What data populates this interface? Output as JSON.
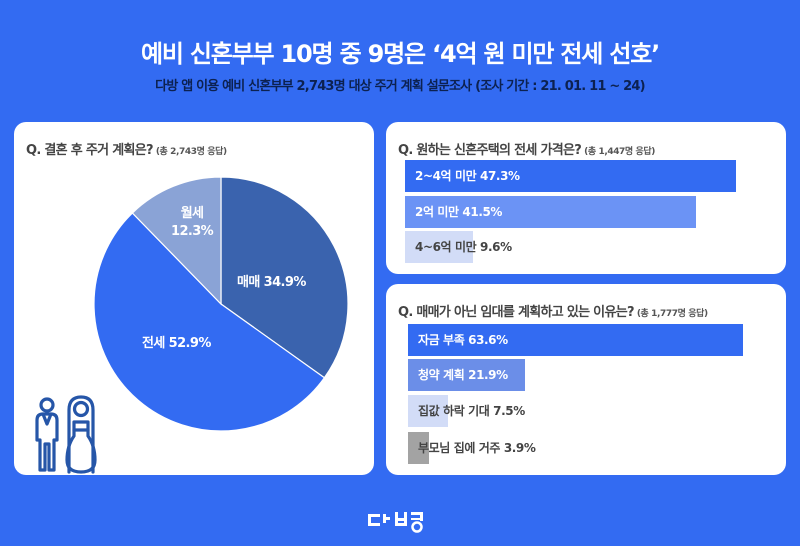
{
  "header": {
    "title": "예비 신혼부부 10명 중 9명은 ‘4억 원 미만 전세 선호’",
    "subtitle": "다방 앱 이용 예비 신혼부부 2,743명 대상 주거 계획 설문조사 (조사 기간 : 21. 01. 11 ~ 24)"
  },
  "cards": {
    "housing_plan": {
      "question": "Q. 결혼 후 주거 계획은?",
      "respondents": "(총 2,743명 응답)",
      "slices": [
        {
          "label": "매매 34.9%",
          "name": "매매",
          "value": 34.9,
          "color": "#3a63ae"
        },
        {
          "label": "전세 52.9%",
          "name": "전세",
          "value": 52.9,
          "color": "#336bf2"
        },
        {
          "label_line1": "월세",
          "label_line2": "12.3%",
          "name": "월세",
          "value": 12.3,
          "color": "#8aa3d6"
        }
      ],
      "icon": "bride-groom-icon"
    },
    "jeonse_price": {
      "question": "Q. 원하는 신혼주택의 전세 가격은?",
      "respondents": "(총 1,447명 응답)",
      "bars": [
        {
          "label": "2~4억 미만 47.3%",
          "value": 47.3,
          "color": "#336bf2",
          "text_color": "#ffffff"
        },
        {
          "label": "2억 미만 41.5%",
          "value": 41.5,
          "color": "#6b93f5",
          "text_color": "#ffffff"
        },
        {
          "label": "4~6억 미만 9.6%",
          "value": 9.6,
          "color": "#d2dcf7",
          "text_color": "#444444"
        }
      ]
    },
    "rent_reason": {
      "question": "Q. 매매가 아닌 임대를 계획하고 있는 이유는?",
      "respondents": "(총 1,777명 응답)",
      "bars": [
        {
          "label": "자금 부족 63.6%",
          "value": 63.6,
          "color": "#336bf2",
          "text_color": "#ffffff"
        },
        {
          "label": "청약 계획 21.9%",
          "value": 21.9,
          "color": "#6b8ee8",
          "text_color": "#ffffff"
        },
        {
          "label": "집값 하락 기대 7.5%",
          "value": 7.5,
          "color": "#d2dcf7",
          "text_color": "#444444"
        },
        {
          "label": "부모님 집에 거주 3.9%",
          "value": 3.9,
          "color": "#a3a3a3",
          "text_color": "#444444"
        }
      ]
    }
  },
  "footer": {
    "logo": "dabang-logo"
  },
  "chart_data": [
    {
      "type": "pie",
      "title": "Q. 결혼 후 주거 계획은? (총 2,743명 응답)",
      "categories": [
        "매매",
        "전세",
        "월세"
      ],
      "values": [
        34.9,
        52.9,
        12.3
      ],
      "unit": "%"
    },
    {
      "type": "bar",
      "orientation": "horizontal",
      "title": "Q. 원하는 신혼주택의 전세 가격은? (총 1,447명 응답)",
      "categories": [
        "2~4억 미만",
        "2억 미만",
        "4~6억 미만"
      ],
      "values": [
        47.3,
        41.5,
        9.6
      ],
      "unit": "%"
    },
    {
      "type": "bar",
      "orientation": "horizontal",
      "title": "Q. 매매가 아닌 임대를 계획하고 있는 이유는? (총 1,777명 응답)",
      "categories": [
        "자금 부족",
        "청약 계획",
        "집값 하락 기대",
        "부모님 집에 거주"
      ],
      "values": [
        63.6,
        21.9,
        7.5,
        3.9
      ],
      "unit": "%"
    }
  ]
}
